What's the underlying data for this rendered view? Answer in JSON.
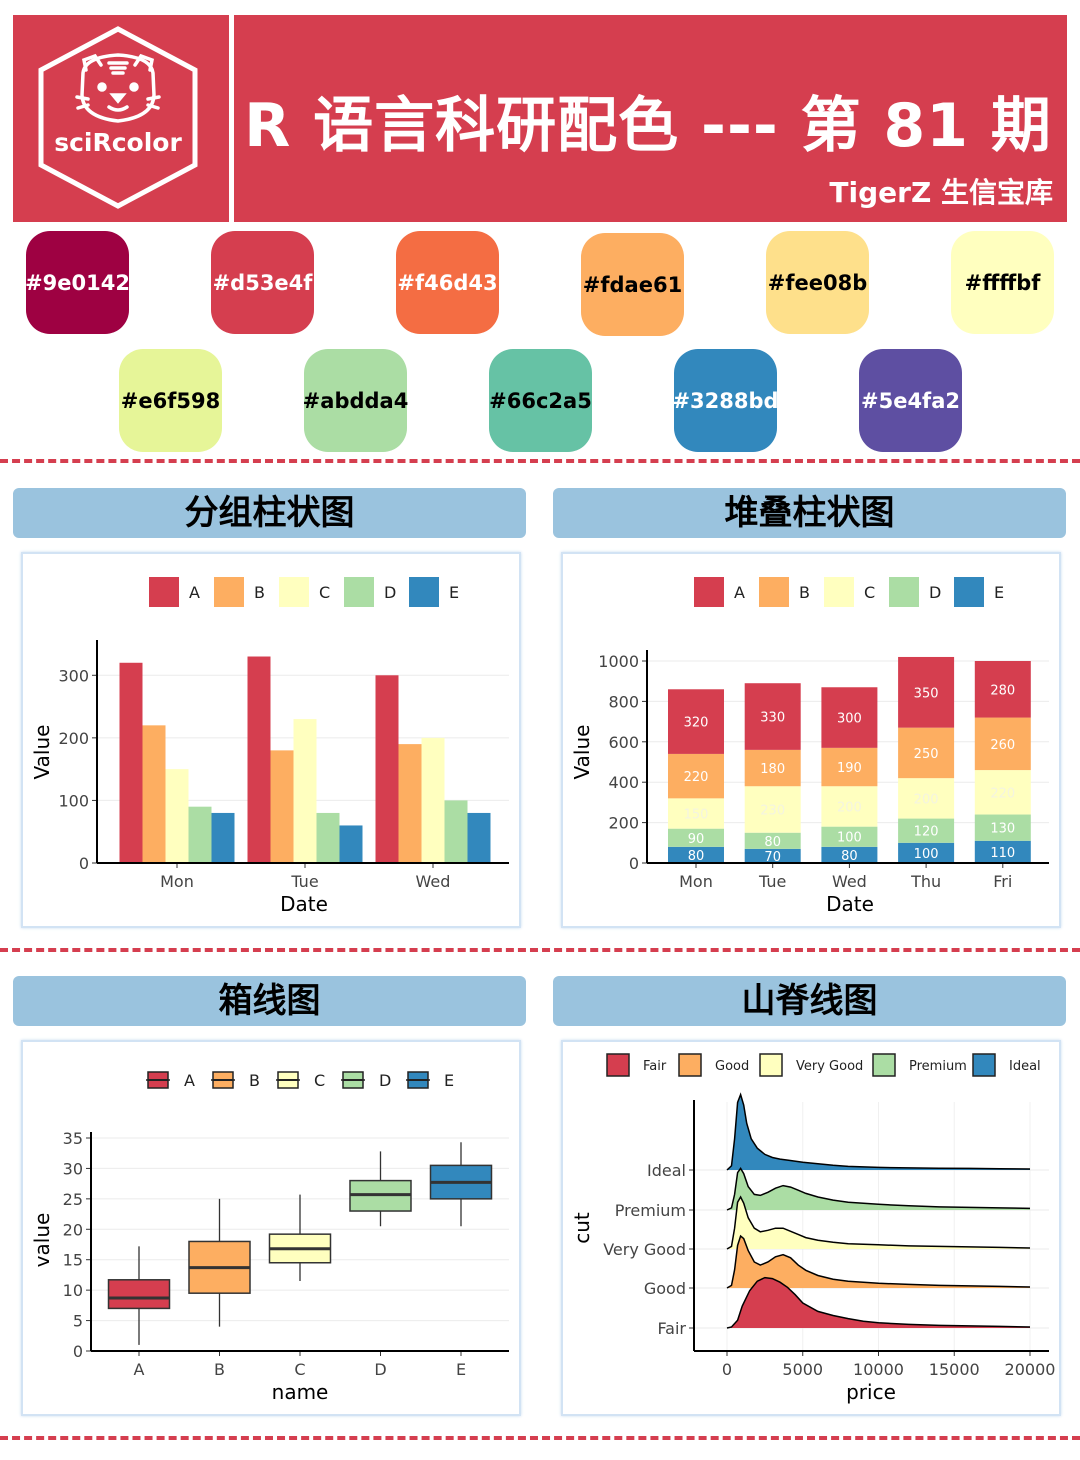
{
  "header": {
    "logo_text": "sciRcolor",
    "title": "R 语言科研配色 --- 第 81 期",
    "subtitle": "TigerZ 生信宝库"
  },
  "palette": [
    {
      "hex": "#9e0142",
      "label": "#9e0142",
      "text_color": "#ffffff"
    },
    {
      "hex": "#d53e4f",
      "label": "#d53e4f",
      "text_color": "#ffffff"
    },
    {
      "hex": "#f46d43",
      "label": "#f46d43",
      "text_color": "#ffffff"
    },
    {
      "hex": "#fdae61",
      "label": "#fdae61",
      "text_color": "#000000"
    },
    {
      "hex": "#fee08b",
      "label": "#fee08b",
      "text_color": "#000000"
    },
    {
      "hex": "#ffffbf",
      "label": "#ffffbf",
      "text_color": "#000000"
    },
    {
      "hex": "#e6f598",
      "label": "#e6f598",
      "text_color": "#000000"
    },
    {
      "hex": "#abdda4",
      "label": "#abdda4",
      "text_color": "#000000"
    },
    {
      "hex": "#66c2a5",
      "label": "#66c2a5",
      "text_color": "#000000"
    },
    {
      "hex": "#3288bd",
      "label": "#3288bd",
      "text_color": "#ffffff"
    },
    {
      "hex": "#5e4fa2",
      "label": "#5e4fa2",
      "text_color": "#ffffff"
    }
  ],
  "panels": {
    "grouped_bar": "分组柱状图",
    "stacked_bar": "堆叠柱状图",
    "boxplot": "箱线图",
    "ridgeline": "山脊线图"
  },
  "chart_data": [
    {
      "type": "bar",
      "categories": [
        "Mon",
        "Tue",
        "Wed"
      ],
      "series": [
        {
          "name": "A",
          "values": [
            320,
            330,
            300
          ],
          "color": "#d53e4f"
        },
        {
          "name": "B",
          "values": [
            220,
            180,
            190
          ],
          "color": "#fdae61"
        },
        {
          "name": "C",
          "values": [
            150,
            230,
            200
          ],
          "color": "#ffffbf"
        },
        {
          "name": "D",
          "values": [
            90,
            80,
            100
          ],
          "color": "#abdda4"
        },
        {
          "name": "E",
          "values": [
            80,
            60,
            80
          ],
          "color": "#3288bd"
        }
      ],
      "xlabel": "Date",
      "ylabel": "Value",
      "ylim": [
        0,
        350
      ],
      "yticks": [
        0,
        100,
        200,
        300
      ],
      "legend": "top",
      "grid": true
    },
    {
      "type": "bar",
      "stacked": true,
      "categories": [
        "Mon",
        "Tue",
        "Wed",
        "Thu",
        "Fri"
      ],
      "series": [
        {
          "name": "E",
          "values": [
            80,
            70,
            80,
            100,
            110
          ],
          "color": "#3288bd"
        },
        {
          "name": "D",
          "values": [
            90,
            80,
            100,
            120,
            130
          ],
          "color": "#abdda4"
        },
        {
          "name": "C",
          "values": [
            150,
            230,
            200,
            200,
            220
          ],
          "color": "#ffffbf"
        },
        {
          "name": "B",
          "values": [
            220,
            180,
            190,
            250,
            260
          ],
          "color": "#fdae61"
        },
        {
          "name": "A",
          "values": [
            320,
            330,
            300,
            350,
            280
          ],
          "color": "#d53e4f"
        }
      ],
      "legend_order": [
        "A",
        "B",
        "C",
        "D",
        "E"
      ],
      "xlabel": "Date",
      "ylabel": "Value",
      "ylim": [
        0,
        1000
      ],
      "yticks": [
        0,
        200,
        400,
        600,
        800,
        1000
      ],
      "legend": "top",
      "grid": true
    },
    {
      "type": "boxplot",
      "categories": [
        "A",
        "B",
        "C",
        "D",
        "E"
      ],
      "boxes": [
        {
          "name": "A",
          "min": 1,
          "q1": 7,
          "median": 8.7,
          "q3": 11.7,
          "max": 17.2,
          "color": "#d53e4f"
        },
        {
          "name": "B",
          "min": 4,
          "q1": 9.5,
          "median": 13.7,
          "q3": 18,
          "max": 25,
          "color": "#fdae61"
        },
        {
          "name": "C",
          "min": 11.5,
          "q1": 14.5,
          "median": 16.8,
          "q3": 19.2,
          "max": 25.7,
          "color": "#ffffbf"
        },
        {
          "name": "D",
          "min": 20.5,
          "q1": 23,
          "median": 25.7,
          "q3": 28,
          "max": 32.8,
          "color": "#abdda4"
        },
        {
          "name": "E",
          "min": 20.5,
          "q1": 25,
          "median": 27.7,
          "q3": 30.5,
          "max": 34.3,
          "color": "#3288bd"
        }
      ],
      "xlabel": "name",
      "ylabel": "value",
      "ylim": [
        0,
        36
      ],
      "yticks": [
        0,
        5,
        10,
        15,
        20,
        25,
        30,
        35
      ],
      "legend": "top",
      "grid": true
    },
    {
      "type": "area",
      "subtype": "ridgeline",
      "categories": [
        "Fair",
        "Good",
        "Very Good",
        "Premium",
        "Ideal"
      ],
      "series": [
        {
          "name": "Fair",
          "color": "#d53e4f",
          "x": [
            0,
            300,
            700,
            1000,
            1500,
            2000,
            2500,
            3000,
            3500,
            4000,
            4500,
            5000,
            6000,
            7000,
            8000,
            9000,
            10000,
            12000,
            14000,
            16000,
            18000,
            20000
          ],
          "y": [
            0,
            0.02,
            0.15,
            0.42,
            0.72,
            0.9,
            0.97,
            0.95,
            0.88,
            0.78,
            0.64,
            0.48,
            0.32,
            0.24,
            0.18,
            0.13,
            0.1,
            0.07,
            0.05,
            0.04,
            0.03,
            0.02
          ]
        },
        {
          "name": "Good",
          "color": "#fdae61",
          "x": [
            0,
            300,
            500,
            700,
            900,
            1100,
            1400,
            1800,
            2200,
            2700,
            3200,
            3700,
            4200,
            4700,
            5200,
            6000,
            7000,
            8000,
            10000,
            12000,
            14000,
            16000,
            18000,
            20000
          ],
          "y": [
            0,
            0.05,
            0.35,
            0.82,
            1.0,
            0.95,
            0.72,
            0.5,
            0.44,
            0.5,
            0.6,
            0.64,
            0.58,
            0.44,
            0.34,
            0.24,
            0.17,
            0.13,
            0.09,
            0.07,
            0.05,
            0.04,
            0.03,
            0.02
          ]
        },
        {
          "name": "Very Good",
          "color": "#ffffbf",
          "x": [
            0,
            300,
            500,
            700,
            900,
            1100,
            1400,
            1800,
            2200,
            2700,
            3200,
            3700,
            4200,
            4700,
            5200,
            6000,
            7000,
            8000,
            10000,
            12000,
            14000,
            16000,
            18000,
            20000
          ],
          "y": [
            0,
            0.05,
            0.4,
            0.9,
            1.0,
            0.88,
            0.6,
            0.4,
            0.33,
            0.36,
            0.4,
            0.4,
            0.34,
            0.28,
            0.22,
            0.17,
            0.13,
            0.1,
            0.08,
            0.06,
            0.05,
            0.04,
            0.03,
            0.02
          ]
        },
        {
          "name": "Premium",
          "color": "#abdda4",
          "x": [
            0,
            300,
            500,
            700,
            900,
            1100,
            1400,
            1800,
            2200,
            2700,
            3200,
            3700,
            4200,
            4700,
            5200,
            6000,
            7000,
            8000,
            10000,
            12000,
            14000,
            16000,
            18000,
            20000
          ],
          "y": [
            0,
            0.04,
            0.3,
            0.72,
            0.8,
            0.7,
            0.45,
            0.3,
            0.28,
            0.34,
            0.42,
            0.47,
            0.44,
            0.38,
            0.32,
            0.25,
            0.19,
            0.15,
            0.11,
            0.08,
            0.06,
            0.05,
            0.04,
            0.03
          ]
        },
        {
          "name": "Ideal",
          "color": "#3288bd",
          "x": [
            0,
            300,
            500,
            700,
            900,
            1100,
            1300,
            1600,
            2000,
            2500,
            3000,
            3500,
            4000,
            5000,
            6000,
            7000,
            8000,
            10000,
            12000,
            14000,
            16000,
            18000,
            20000
          ],
          "y": [
            0,
            0.08,
            0.6,
            1.3,
            1.45,
            1.25,
            0.9,
            0.6,
            0.42,
            0.3,
            0.24,
            0.21,
            0.19,
            0.15,
            0.12,
            0.09,
            0.07,
            0.05,
            0.04,
            0.035,
            0.03,
            0.025,
            0.02
          ]
        }
      ],
      "xlabel": "price",
      "ylabel": "cut",
      "xlim": [
        -2000,
        21000
      ],
      "xticks": [
        0,
        5000,
        10000,
        15000,
        20000
      ],
      "legend": "top",
      "grid": true
    }
  ]
}
